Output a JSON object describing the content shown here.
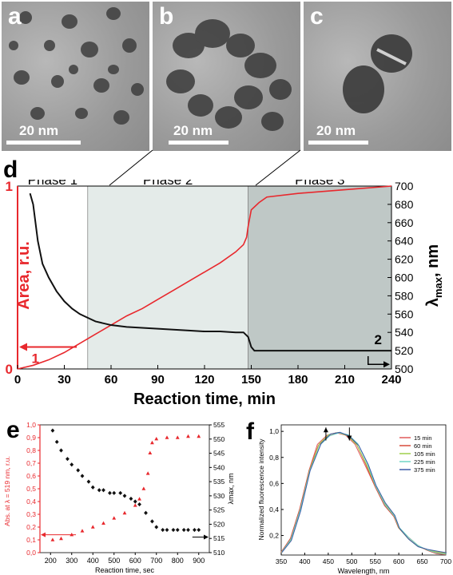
{
  "tem_panels": [
    {
      "label": "a",
      "scale_bar": "20 nm"
    },
    {
      "label": "b",
      "scale_bar": "20 nm"
    },
    {
      "label": "c",
      "scale_bar": "20 nm"
    }
  ],
  "panel_labels": {
    "d": "d",
    "e": "e",
    "f": "f"
  },
  "chart_data": [
    {
      "panel": "d",
      "type": "line",
      "phases": [
        "Phase 1",
        "Phase 2",
        "Phase 3"
      ],
      "phase_bounds": [
        0,
        45,
        148,
        240
      ],
      "xlabel": "Reaction time, min",
      "ylabel_left": "Area, r.u.",
      "ylabel_right_main": "λ",
      "ylabel_right_sub": "max",
      "ylabel_right_unit": ", nm",
      "xlim": [
        0,
        240
      ],
      "ylim_left": [
        0,
        1
      ],
      "ylim_right": [
        500,
        700
      ],
      "x_ticks": [
        "0",
        "30",
        "60",
        "90",
        "120",
        "150",
        "180",
        "210",
        "240"
      ],
      "y_ticks_left": [
        "0",
        "1"
      ],
      "y_ticks_right": [
        "500",
        "520",
        "540",
        "560",
        "580",
        "600",
        "620",
        "640",
        "660",
        "680",
        "700"
      ],
      "curve_markers": {
        "area": "1",
        "lambda": "2"
      },
      "series": [
        {
          "axis": "left",
          "color": "#e8282d",
          "x": [
            0,
            10,
            20,
            30,
            40,
            50,
            60,
            70,
            80,
            90,
            100,
            110,
            120,
            130,
            140,
            145,
            147,
            148,
            150,
            155,
            160,
            180,
            210,
            240
          ],
          "y": [
            0.0,
            0.02,
            0.05,
            0.09,
            0.14,
            0.19,
            0.24,
            0.29,
            0.33,
            0.38,
            0.43,
            0.48,
            0.53,
            0.58,
            0.64,
            0.68,
            0.72,
            0.78,
            0.87,
            0.91,
            0.94,
            0.96,
            0.98,
            1.0
          ]
        },
        {
          "axis": "right",
          "color": "#111111",
          "x": [
            8,
            10,
            13,
            16,
            20,
            25,
            30,
            35,
            40,
            45,
            50,
            60,
            70,
            80,
            90,
            100,
            110,
            120,
            130,
            140,
            145,
            148,
            150,
            152,
            160,
            180,
            200,
            220,
            240
          ],
          "y": [
            692,
            680,
            640,
            615,
            600,
            585,
            574,
            566,
            560,
            556,
            552,
            548,
            546,
            545,
            544,
            543,
            542,
            541,
            541,
            540,
            540,
            535,
            524,
            520,
            520,
            520,
            520,
            520,
            520
          ]
        }
      ]
    },
    {
      "panel": "e",
      "type": "scatter",
      "xlabel": "Reaction time, sec",
      "ylabel_left": "Abs. at λ = 519 nm, r.u.",
      "ylabel_right": "λmax, nm",
      "xlim": [
        150,
        950
      ],
      "ylim_left": [
        0,
        1.0
      ],
      "ylim_right": [
        510,
        555
      ],
      "x_ticks": [
        "200",
        "300",
        "400",
        "500",
        "600",
        "700",
        "800",
        "900"
      ],
      "y_ticks_left": [
        "0,0",
        "0,1",
        "0,2",
        "0,3",
        "0,4",
        "0,5",
        "0,6",
        "0,7",
        "0,8",
        "0,9",
        "1,0"
      ],
      "y_ticks_right": [
        "510",
        "515",
        "520",
        "525",
        "530",
        "535",
        "540",
        "545",
        "550",
        "555"
      ],
      "series": [
        {
          "axis": "left",
          "color": "#e8282d",
          "marker": "triangle",
          "x": [
            210,
            250,
            300,
            350,
            400,
            450,
            500,
            550,
            600,
            620,
            640,
            660,
            670,
            680,
            700,
            750,
            800,
            850,
            900
          ],
          "y": [
            0.1,
            0.11,
            0.14,
            0.17,
            0.2,
            0.23,
            0.27,
            0.31,
            0.37,
            0.42,
            0.5,
            0.62,
            0.78,
            0.86,
            0.89,
            0.9,
            0.9,
            0.91,
            0.91
          ]
        },
        {
          "axis": "right",
          "color": "#111111",
          "marker": "diamond",
          "x": [
            210,
            230,
            250,
            280,
            300,
            330,
            350,
            380,
            400,
            430,
            450,
            480,
            500,
            530,
            550,
            580,
            600,
            620,
            650,
            680,
            700,
            730,
            750,
            780,
            800,
            830,
            850,
            880,
            900
          ],
          "y": [
            553,
            549,
            546,
            543,
            541,
            539,
            537,
            535,
            533,
            532,
            532,
            531,
            531,
            531,
            530,
            529,
            528,
            527,
            524,
            521,
            519,
            518,
            518,
            518,
            518,
            518,
            518,
            518,
            518
          ]
        }
      ]
    },
    {
      "panel": "f",
      "type": "line",
      "xlabel": "Wavelength, nm",
      "ylabel": "Normalized fluorescence intensity",
      "xlim": [
        350,
        700
      ],
      "ylim": [
        0.05,
        1.05
      ],
      "x_ticks": [
        "350",
        "400",
        "450",
        "500",
        "550",
        "600",
        "650",
        "700"
      ],
      "y_ticks": [
        "0,2",
        "0,4",
        "0,6",
        "0,8",
        "1,0"
      ],
      "legend_position": "top-right",
      "series": [
        {
          "name": "15 min",
          "color": "#e05a5a"
        },
        {
          "name": "60 min",
          "color": "#d94a3a"
        },
        {
          "name": "105 min",
          "color": "#9fcf4a"
        },
        {
          "name": "225 min",
          "color": "#6fd6c6"
        },
        {
          "name": "375 min",
          "color": "#3a5aa8"
        }
      ],
      "x": [
        350,
        370,
        390,
        410,
        430,
        450,
        470,
        490,
        510,
        530,
        550,
        570,
        590,
        600,
        620,
        640,
        660,
        680,
        700
      ],
      "base_curve": [
        0.07,
        0.17,
        0.4,
        0.7,
        0.9,
        0.97,
        0.99,
        0.97,
        0.9,
        0.75,
        0.58,
        0.44,
        0.35,
        0.26,
        0.18,
        0.12,
        0.09,
        0.07,
        0.06
      ],
      "arrows": [
        {
          "x": 445,
          "dir": "up"
        },
        {
          "x": 495,
          "dir": "down"
        }
      ]
    }
  ]
}
